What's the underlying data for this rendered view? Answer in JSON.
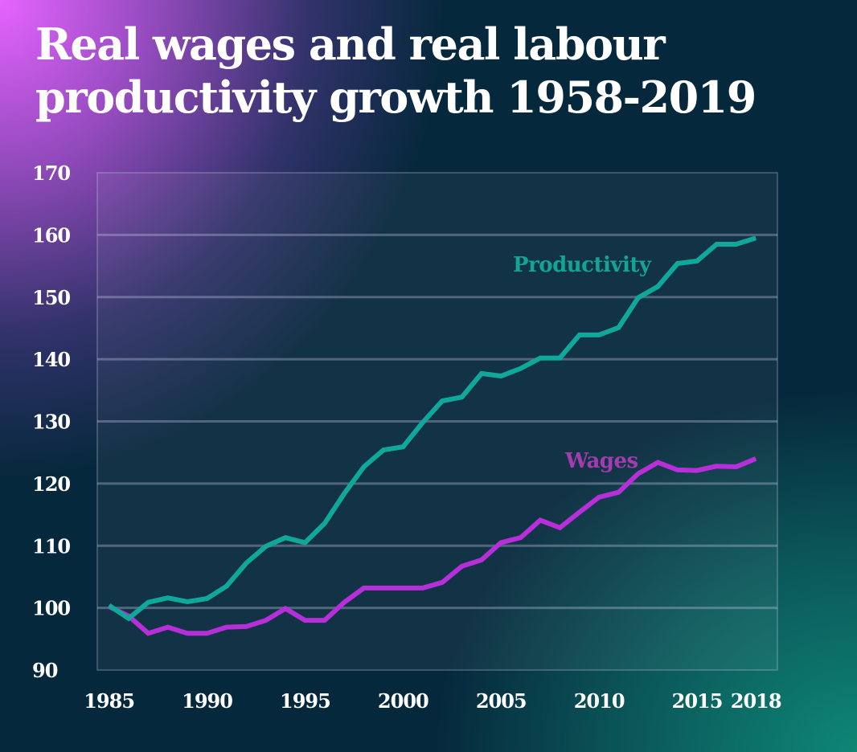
{
  "title": "Real wages and real labour productivity growth 1958-2019",
  "colors": {
    "productivity": "#0fa89a",
    "wages": "#b62fd9",
    "productivity_label": "#12a596",
    "wages_label": "#a43cb0"
  },
  "chart_data": {
    "type": "line",
    "title": "Real wages and real labour productivity growth 1958-2019",
    "xlabel": "",
    "ylabel": "",
    "x": [
      1985,
      1986,
      1987,
      1988,
      1989,
      1990,
      1991,
      1992,
      1993,
      1994,
      1995,
      1996,
      1997,
      1998,
      1999,
      2000,
      2001,
      2002,
      2003,
      2004,
      2005,
      2006,
      2007,
      2008,
      2009,
      2010,
      2011,
      2012,
      2013,
      2014,
      2015,
      2016,
      2017,
      2018
    ],
    "xlim": [
      1984.4,
      2019.1
    ],
    "ylim": [
      90,
      170
    ],
    "x_ticks": [
      1985,
      1990,
      1995,
      2000,
      2005,
      2010,
      2015,
      2018
    ],
    "x_tick_labels": [
      "1985",
      "1990",
      "1995",
      "2000",
      "2005",
      "2010",
      "2015",
      "2018"
    ],
    "y_ticks": [
      90,
      100,
      110,
      120,
      130,
      140,
      150,
      160,
      170
    ],
    "y_tick_labels": [
      "90",
      "100",
      "110",
      "120",
      "130",
      "140",
      "150",
      "160",
      "170"
    ],
    "grid": true,
    "legend": "inline labels",
    "series": [
      {
        "name": "Productivity",
        "label": "Productivity",
        "values": [
          100.4,
          98.3,
          100.9,
          101.6,
          101.0,
          101.5,
          103.5,
          107.2,
          109.9,
          111.3,
          110.5,
          113.6,
          118.4,
          122.7,
          125.4,
          125.9,
          129.8,
          133.3,
          133.9,
          137.7,
          137.3,
          138.5,
          140.2,
          140.2,
          143.9,
          143.9,
          145.1,
          149.9,
          151.7,
          155.4,
          155.8,
          158.5,
          158.5,
          159.5
        ]
      },
      {
        "name": "Wages",
        "label": "Wages",
        "values": [
          100.2,
          98.7,
          95.9,
          96.9,
          95.9,
          95.9,
          96.9,
          97.0,
          98.0,
          99.9,
          98.0,
          98.0,
          100.9,
          103.2,
          103.2,
          103.2,
          103.2,
          104.1,
          106.7,
          107.7,
          110.5,
          111.3,
          114.1,
          112.9,
          115.4,
          117.8,
          118.6,
          121.6,
          123.4,
          122.2,
          122.1,
          122.8,
          122.7,
          124.0
        ]
      }
    ]
  }
}
